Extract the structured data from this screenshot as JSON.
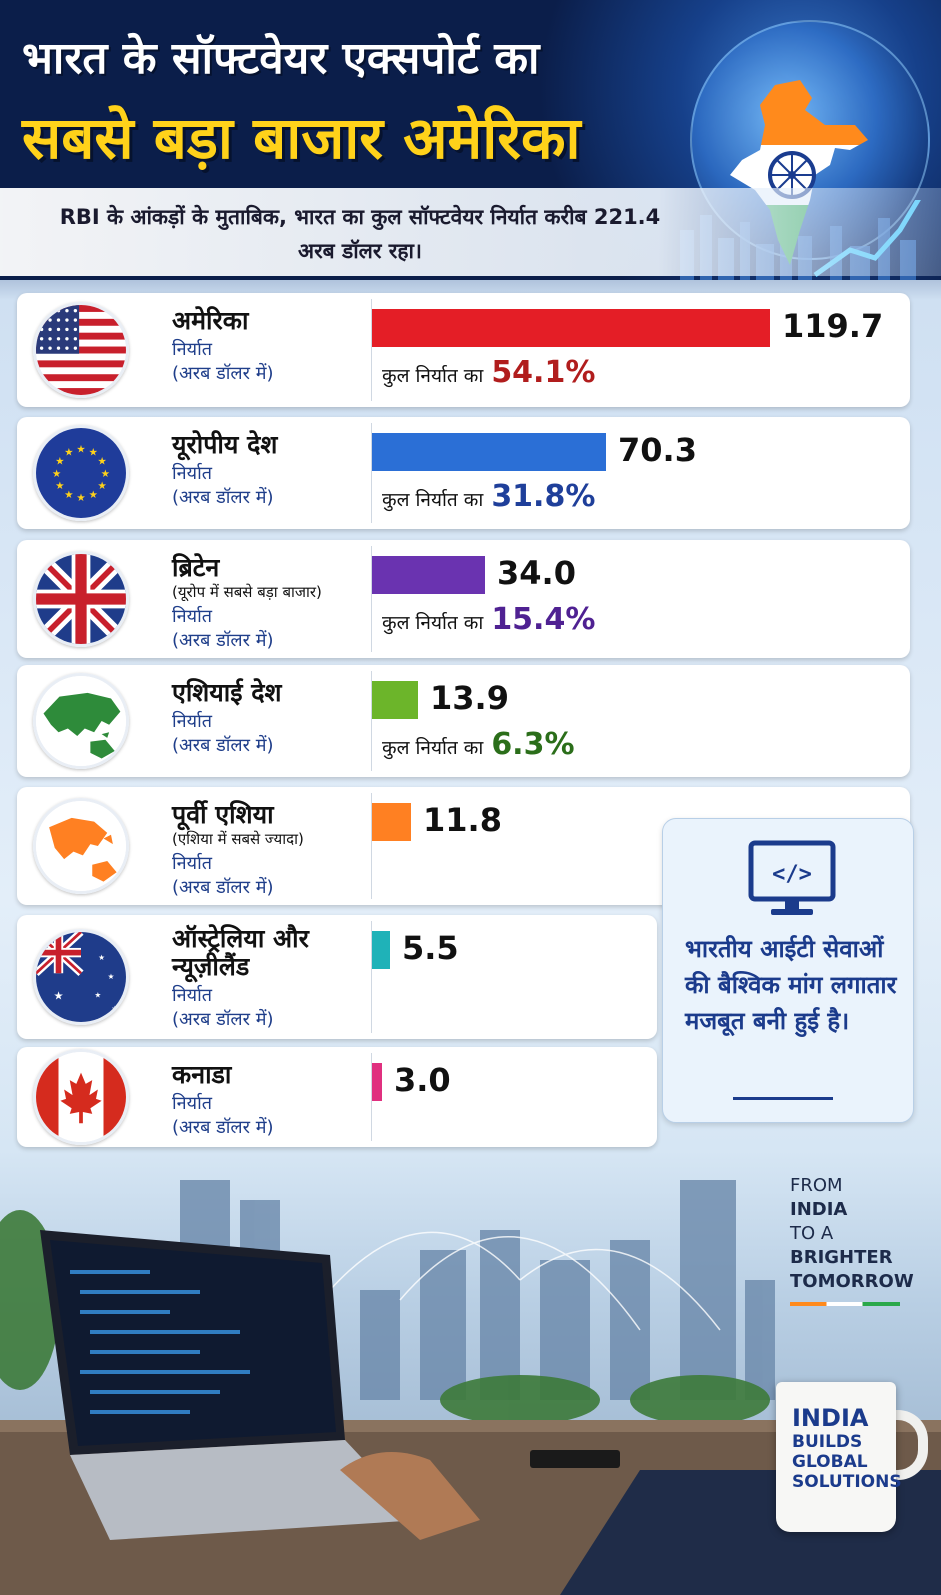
{
  "header": {
    "title_line1": "भारत के सॉफ्टवेयर एक्सपोर्ट का",
    "title_line2": "सबसे बड़ा बाजार अमेरिका",
    "subtitle": "RBI के आंकड़ों के मुताबिक, भारत का कुल सॉफ्टवेयर निर्यात करीब 221.4 अरब डॉलर रहा।"
  },
  "labels": {
    "export": "निर्यात",
    "unit": "(अरब डॉलर में)",
    "share_prefix": "कुल निर्यात का"
  },
  "chart_data": {
    "type": "bar",
    "categories": [
      "अमेरिका",
      "यूरोपीय देश",
      "ब्रिटेन",
      "एशियाई देश",
      "पूर्वी एशिया",
      "ऑस्ट्रेलिया और न्यूज़ीलैंड",
      "कनाडा"
    ],
    "notes": [
      "",
      "",
      "(यूरोप में सबसे बड़ा बाजार)",
      "",
      "(एशिया में सबसे ज्यादा)",
      "",
      ""
    ],
    "values": [
      119.7,
      70.3,
      34.0,
      13.9,
      11.8,
      5.5,
      3.0
    ],
    "value_labels": [
      "119.7",
      "70.3",
      "34.0",
      "13.9",
      "11.8",
      "5.5",
      "3.0"
    ],
    "shares": [
      "54.1%",
      "31.8%",
      "15.4%",
      "6.3%",
      "",
      "",
      ""
    ],
    "colors": [
      "#e41e26",
      "#2b6fd6",
      "#6a33b0",
      "#6cb52a",
      "#ff8022",
      "#1fb2b8",
      "#e0307f"
    ],
    "share_colors": [
      "#b11d1d",
      "#1f3f9a",
      "#4f2192",
      "#2b6e1a",
      "",
      "",
      ""
    ],
    "flags": [
      "usa-flag",
      "eu-flag",
      "uk-flag",
      "asia-map",
      "east-asia-map",
      "australia-flag",
      "canada-flag"
    ]
  },
  "side_note": {
    "text": "भारतीय आईटी सेवाओं की बैश्विक मांग लगातार मजबूत बनी हुई है।"
  },
  "tagline": {
    "line1": "FROM",
    "line2": "INDIA",
    "line3": "TO A",
    "line4": "BRIGHTER",
    "line5": "TOMORROW"
  },
  "mug": {
    "line1": "INDIA",
    "line2": "BUILDS",
    "line3": "GLOBAL",
    "line4": "SOLUTIONS"
  }
}
